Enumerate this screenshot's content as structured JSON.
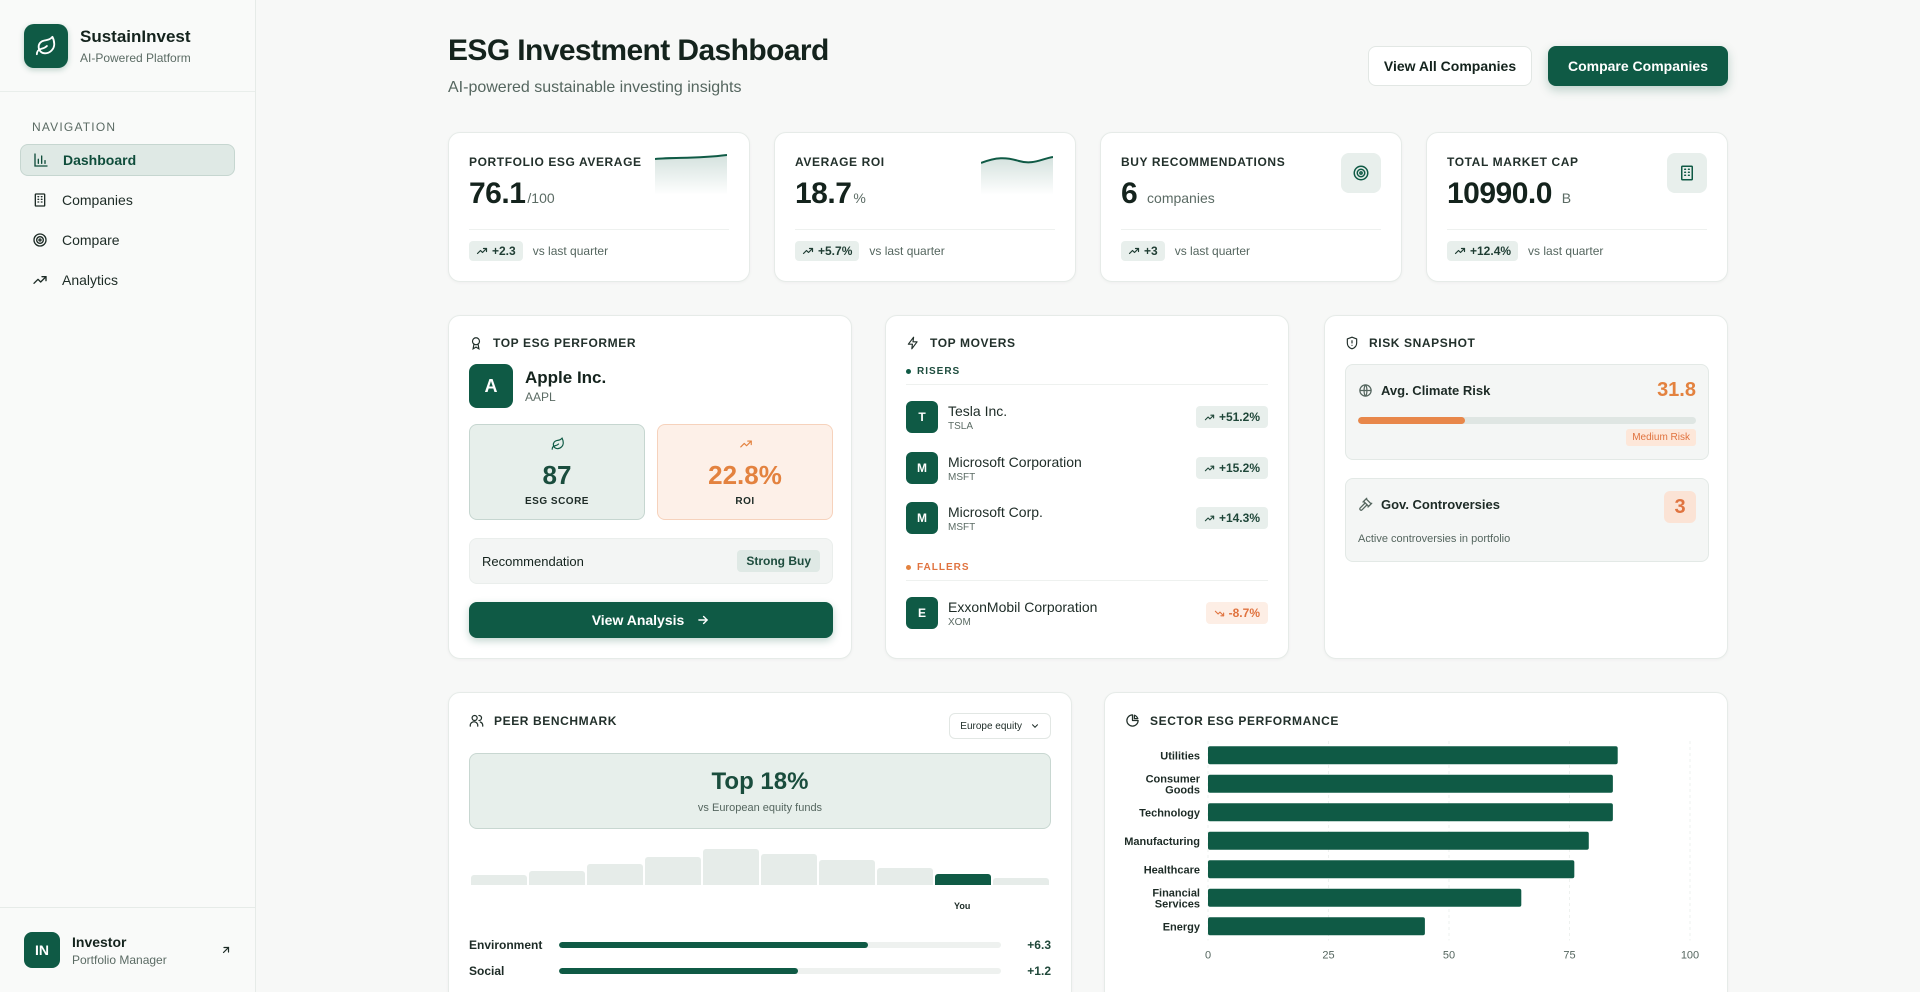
{
  "brand": {
    "name": "SustainInvest",
    "subtitle": "AI-Powered Platform"
  },
  "nav": {
    "title": "NAVIGATION",
    "items": [
      {
        "label": "Dashboard",
        "active": true,
        "icon": "bar-chart-icon"
      },
      {
        "label": "Companies",
        "active": false,
        "icon": "building-icon"
      },
      {
        "label": "Compare",
        "active": false,
        "icon": "target-icon"
      },
      {
        "label": "Analytics",
        "active": false,
        "icon": "trend-icon"
      }
    ]
  },
  "user": {
    "initials": "IN",
    "name": "Investor",
    "role": "Portfolio Manager"
  },
  "header": {
    "title": "ESG Investment Dashboard",
    "subtitle": "AI-powered sustainable investing insights",
    "view_all_label": "View All Companies",
    "compare_label": "Compare Companies"
  },
  "stats": [
    {
      "label": "PORTFOLIO ESG AVERAGE",
      "value": "76.1",
      "unit": "/100",
      "delta": "+2.3",
      "compare": "vs last quarter",
      "visual": "sparkline"
    },
    {
      "label": "AVERAGE ROI",
      "value": "18.7",
      "unit": "%",
      "delta": "+5.7%",
      "compare": "vs last quarter",
      "visual": "sparkline"
    },
    {
      "label": "BUY RECOMMENDATIONS",
      "value": "6",
      "unit": "companies",
      "delta": "+3",
      "compare": "vs last quarter",
      "visual": "target-icon"
    },
    {
      "label": "TOTAL MARKET CAP",
      "value": "10990.0",
      "unit": "B",
      "delta": "+12.4%",
      "compare": "vs last quarter",
      "visual": "building-icon"
    }
  ],
  "top_performer": {
    "title": "TOP ESG PERFORMER",
    "initial": "A",
    "name": "Apple Inc.",
    "ticker": "AAPL",
    "esg_score": "87",
    "esg_label": "ESG SCORE",
    "roi": "22.8%",
    "roi_label": "ROI",
    "recommendation_label": "Recommendation",
    "recommendation": "Strong Buy",
    "cta": "View Analysis"
  },
  "top_movers": {
    "title": "TOP MOVERS",
    "risers_label": "RISERS",
    "fallers_label": "FALLERS",
    "risers": [
      {
        "initial": "T",
        "name": "Tesla Inc.",
        "ticker": "TSLA",
        "change": "+51.2%"
      },
      {
        "initial": "M",
        "name": "Microsoft Corporation",
        "ticker": "MSFT",
        "change": "+15.2%"
      },
      {
        "initial": "M",
        "name": "Microsoft Corp.",
        "ticker": "MSFT",
        "change": "+14.3%"
      }
    ],
    "fallers": [
      {
        "initial": "E",
        "name": "ExxonMobil Corporation",
        "ticker": "XOM",
        "change": "-8.7%"
      }
    ]
  },
  "risk": {
    "title": "RISK SNAPSHOT",
    "climate_label": "Avg. Climate Risk",
    "climate_value": "31.8",
    "climate_fraction": 0.318,
    "climate_tag": "Medium Risk",
    "controversies_label": "Gov. Controversies",
    "controversies_value": "3",
    "controversies_sub": "Active controversies in portfolio"
  },
  "peer": {
    "title": "PEER BENCHMARK",
    "dropdown": "Europe equity",
    "headline": "Top 18%",
    "headline_sub": "vs European equity funds",
    "distribution": [
      0.27,
      0.4,
      0.57,
      0.77,
      1.0,
      0.87,
      0.7,
      0.47,
      0.3,
      0.2
    ],
    "you_index": 8,
    "you_label": "You",
    "pillars": [
      {
        "name": "Environment",
        "fraction": 0.7,
        "delta": "+6.3"
      },
      {
        "name": "Social",
        "fraction": 0.54,
        "delta": "+1.2"
      }
    ]
  },
  "colors": {
    "brand": "#0f5a45",
    "accent_orange": "#e3823f",
    "chip_bg": "#e8efec"
  },
  "chart_data": {
    "type": "bar",
    "orientation": "horizontal",
    "title": "SECTOR ESG PERFORMANCE",
    "categories": [
      "Utilities",
      "Consumer Goods",
      "Technology",
      "Manufacturing",
      "Healthcare",
      "Financial Services",
      "Energy"
    ],
    "category_lines": [
      [
        "Utilities"
      ],
      [
        "Consumer",
        "Goods"
      ],
      [
        "Technology"
      ],
      [
        "Manufacturing"
      ],
      [
        "Healthcare"
      ],
      [
        "Financial",
        "Services"
      ],
      [
        "Energy"
      ]
    ],
    "values": [
      85,
      84,
      84,
      79,
      76,
      65,
      45
    ],
    "xlim": [
      0,
      100
    ],
    "xticks": [
      "0",
      "25",
      "50",
      "75",
      "100"
    ],
    "grid": true
  }
}
